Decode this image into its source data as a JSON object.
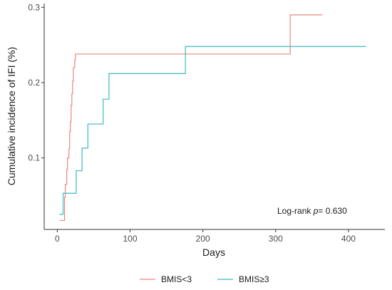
{
  "chart_data": {
    "type": "line",
    "title": "",
    "xlabel": "Days",
    "ylabel": "Cumulative incidence of IFI (%)",
    "xlim": [
      -18,
      450
    ],
    "ylim": [
      0.005,
      0.305
    ],
    "xticks": [
      0,
      100,
      200,
      300,
      400
    ],
    "yticks": [
      0.1,
      0.2,
      0.3
    ],
    "xtick_labels": [
      "0",
      "100",
      "200",
      "300",
      "400"
    ],
    "ytick_labels": [
      "0.1",
      "0.2",
      "0.3"
    ],
    "grid": false,
    "legend_position": "bottom",
    "annotation": {
      "prefix": "Log-rank ",
      "p": "p",
      "value": "= 0.630"
    },
    "series": [
      {
        "name": "BMIS<3",
        "color": "#e8877f",
        "step": true,
        "x": [
          3,
          10,
          11,
          13,
          14,
          16,
          17,
          18,
          19,
          20,
          21,
          22,
          24,
          25,
          320,
          364
        ],
        "y": [
          0.017,
          0.048,
          0.065,
          0.085,
          0.1,
          0.112,
          0.135,
          0.148,
          0.17,
          0.185,
          0.202,
          0.22,
          0.23,
          0.238,
          0.29,
          0.29
        ]
      },
      {
        "name": "BMIS≥3",
        "color": "#3fb7c4",
        "step": true,
        "x": [
          3,
          8,
          26,
          34,
          42,
          63,
          71,
          176,
          424
        ],
        "y": [
          0.025,
          0.053,
          0.083,
          0.113,
          0.145,
          0.178,
          0.212,
          0.248,
          0.248
        ]
      }
    ]
  }
}
